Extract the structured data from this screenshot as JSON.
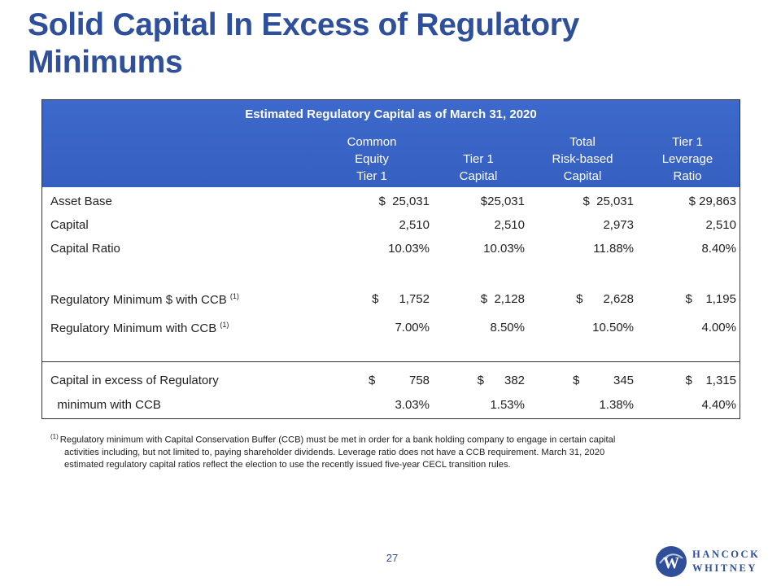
{
  "slide": {
    "title": "Solid Capital In Excess of Regulatory Minimums",
    "page_number": "27"
  },
  "table": {
    "heading": "Estimated Regulatory Capital as of March 31, 2020",
    "columns": [
      [
        "Common",
        "Equity",
        "Tier 1"
      ],
      [
        "Tier 1",
        "Capital"
      ],
      [
        "Total",
        "Risk-based",
        "Capital"
      ],
      [
        "Tier 1",
        "Leverage",
        "Ratio"
      ]
    ],
    "rows": [
      {
        "label": "Asset Base",
        "values": [
          "$  25,031",
          "$25,031",
          "$  25,031",
          "$ 29,863"
        ]
      },
      {
        "label": "Capital",
        "values": [
          "2,510",
          "2,510",
          "2,973",
          "2,510"
        ]
      },
      {
        "label": "Capital Ratio",
        "values": [
          "10.03%",
          "10.03%",
          "11.88%",
          "8.40%"
        ]
      },
      {
        "label": "Regulatory Minimum $ with CCB",
        "note": "(1)",
        "values": [
          "$      1,752",
          "$  2,128",
          "$      2,628",
          "$    1,195"
        ]
      },
      {
        "label": "Regulatory Minimum  with CCB",
        "note": "(1)",
        "values": [
          "7.00%",
          "8.50%",
          "10.50%",
          "4.00%"
        ]
      },
      {
        "label": "Capital in excess of Regulatory",
        "values": [
          "$          758",
          "$      382",
          "$          345",
          "$    1,315"
        ]
      },
      {
        "label": "  minimum with CCB",
        "values": [
          "3.03%",
          "1.53%",
          "1.38%",
          "4.40%"
        ]
      }
    ]
  },
  "footnote": {
    "mark": "(1)",
    "lines": [
      "Regulatory minimum with Capital Conservation Buffer (CCB) must be met in order for a bank holding company to engage in certain capital",
      "activities including, but not limited to, paying shareholder dividends. Leverage ratio does not have a CCB requirement. March 31, 2020",
      "estimated regulatory capital ratios reflect the election to use the recently issued five-year CECL transition rules."
    ]
  },
  "logo": {
    "line1": "HANCOCK",
    "line2": "WHITNEY",
    "mark_letter": "W",
    "color": "#2f4f9a"
  }
}
